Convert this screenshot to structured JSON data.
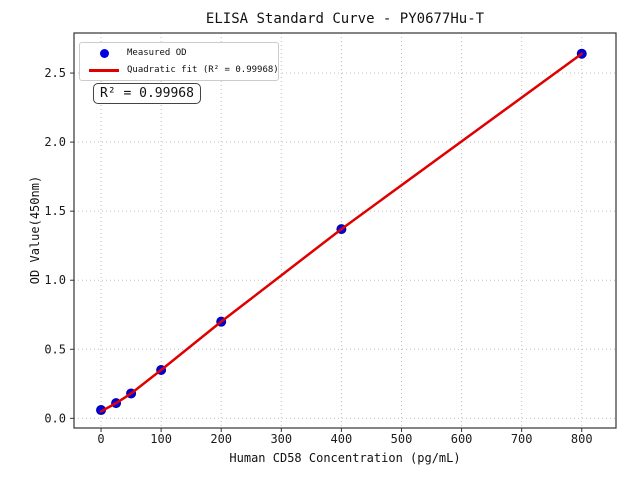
{
  "figure": {
    "title": "ELISA Standard Curve - PY0677Hu-T",
    "xlabel": "Human CD58 Concentration (pg/mL)",
    "ylabel": "OD Value(450nm)",
    "annotation": "R² = 0.99968"
  },
  "legend": {
    "position": "upper-left",
    "items": [
      {
        "label": "Measured OD",
        "marker": "dot",
        "color": "#0000e0"
      },
      {
        "label": "Quadratic fit (R² = 0.99968)",
        "marker": "line",
        "color": "#e00000"
      }
    ]
  },
  "chart_data": {
    "type": "scatter",
    "title": "ELISA Standard Curve - PY0677Hu-T",
    "xlabel": "Human CD58 Concentration (pg/mL)",
    "ylabel": "OD Value(450nm)",
    "xlim": [
      -45,
      857
    ],
    "ylim": [
      -0.07,
      2.79
    ],
    "grid": "dotted",
    "x_ticks": {
      "values": [
        0,
        100,
        200,
        300,
        400,
        500,
        600,
        700,
        800
      ],
      "labels": [
        "0",
        "100",
        "200",
        "300",
        "400",
        "500",
        "600",
        "700",
        "800"
      ]
    },
    "y_ticks": {
      "values": [
        0.0,
        0.5,
        1.0,
        1.5,
        2.0,
        2.5
      ],
      "labels": [
        "0.0",
        "0.5",
        "1.0",
        "1.5",
        "2.0",
        "2.5"
      ]
    },
    "series": [
      {
        "name": "Measured OD",
        "type": "scatter",
        "color": "#0000e0",
        "x": [
          0,
          25,
          50,
          100,
          200,
          400,
          800
        ],
        "y": [
          0.06,
          0.11,
          0.18,
          0.35,
          0.7,
          1.37,
          2.64
        ]
      },
      {
        "name": "Quadratic fit",
        "type": "line",
        "color": "#e00000",
        "r_squared": 0.99968,
        "x": [
          0,
          25,
          50,
          100,
          200,
          400,
          800
        ],
        "y": [
          0.05,
          0.11,
          0.18,
          0.35,
          0.7,
          1.37,
          2.64
        ]
      }
    ]
  },
  "colors": {
    "background": "#ffffff",
    "grid": "#c0c0c0",
    "spine": "#333333",
    "tick": "#333333",
    "tick_label": "#1a1a1a",
    "point": "#0000e0",
    "point_edge": "#0000a8",
    "fit_line": "#e00000"
  }
}
